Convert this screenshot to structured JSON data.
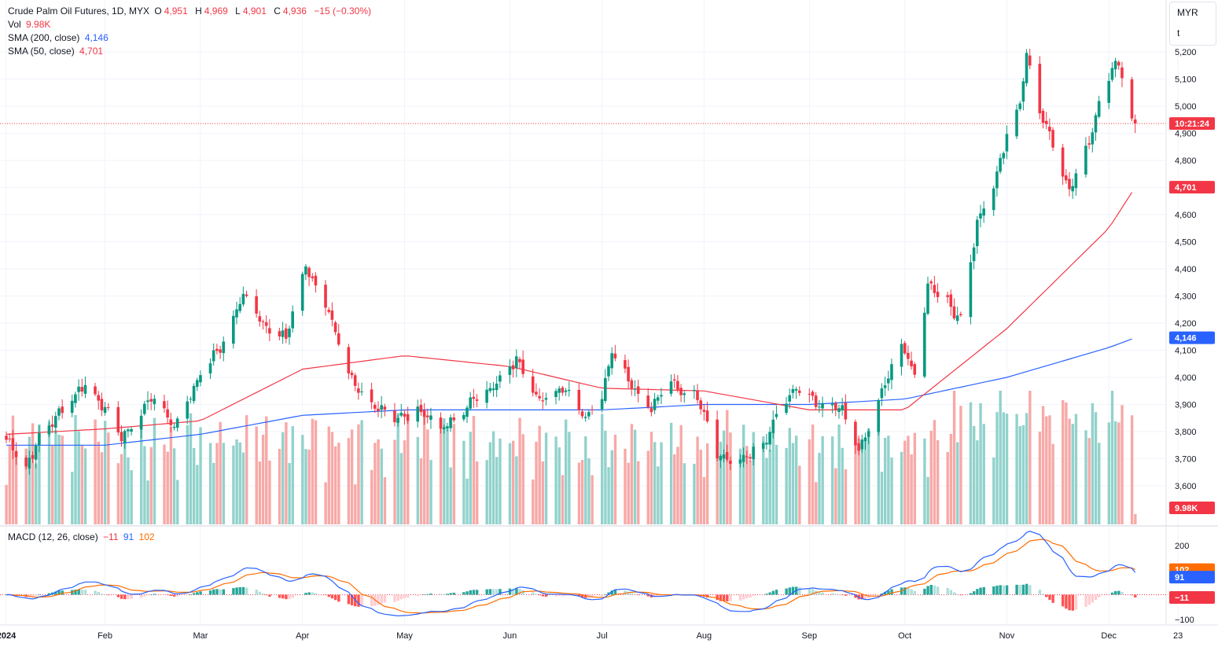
{
  "header": {
    "symbol": "Crude Palm Oil Futures, 1D, MYX",
    "o_label": "O",
    "o_value": "4,951",
    "h_label": "H",
    "h_value": "4,969",
    "l_label": "L",
    "l_value": "4,901",
    "c_label": "C",
    "c_value": "4,936",
    "change": "−15 (−0.30%)"
  },
  "legend": {
    "vol_label": "Vol",
    "vol_value": "9.98K",
    "sma200_label": "SMA (200, close)",
    "sma200_value": "4,146",
    "sma50_label": "SMA (50, close)",
    "sma50_value": "4,701",
    "macd_label": "MACD (12, 26, close)",
    "macd_hist": "−11",
    "macd_line": "91",
    "macd_signal": "102"
  },
  "currency": {
    "code": "MYR",
    "unit": "t"
  },
  "price_badges": {
    "countdown": "10:21:24",
    "sma50": "4,701",
    "sma200": "4,146",
    "volume": "9.98K",
    "macd_signal": "102",
    "macd_line": "91",
    "macd_hist": "−11"
  },
  "colors": {
    "up": "#089981",
    "down": "#f23645",
    "vol_up": "#92d2cc",
    "vol_down": "#f7a9a7",
    "sma50": "#f23645",
    "sma200": "#2962ff",
    "macd": "#2962ff",
    "signal": "#ff6d00",
    "hist_up_strong": "#26a69a",
    "hist_up_weak": "#b2dfdb",
    "hist_down_strong": "#ff5252",
    "hist_down_weak": "#ffcdd2"
  },
  "chart_data": {
    "type": "candlestick",
    "title": "Crude Palm Oil Futures, 1D, MYX",
    "y_ticks": [
      3600,
      3700,
      3800,
      3900,
      4000,
      4100,
      4200,
      4300,
      4400,
      4500,
      4600,
      4700,
      4800,
      4900,
      5000,
      5100,
      5200
    ],
    "y_tick_labels": [
      "3,600",
      "3,700",
      "3,800",
      "3,900",
      "4,000",
      "4,100",
      "4,200",
      "4,300",
      "4,400",
      "4,500",
      "4,600",
      "4,700",
      "4,800",
      "4,900",
      "5,000",
      "5,100",
      "5,200"
    ],
    "x_ticks": [
      {
        "label": "2024",
        "date": "2024-01-02"
      },
      {
        "label": "Feb",
        "date": "2024-02-01"
      },
      {
        "label": "Mar",
        "date": "2024-03-01"
      },
      {
        "label": "Apr",
        "date": "2024-04-01"
      },
      {
        "label": "May",
        "date": "2024-05-02"
      },
      {
        "label": "Jun",
        "date": "2024-06-03"
      },
      {
        "label": "Jul",
        "date": "2024-07-01"
      },
      {
        "label": "Aug",
        "date": "2024-08-01"
      },
      {
        "label": "Sep",
        "date": "2024-09-02"
      },
      {
        "label": "Oct",
        "date": "2024-10-01"
      },
      {
        "label": "Nov",
        "date": "2024-11-01"
      },
      {
        "label": "Dec",
        "date": "2024-12-02"
      },
      {
        "label": "23",
        "date": "2024-12-23"
      }
    ],
    "close_key_points": [
      {
        "date": "2024-01-02",
        "close": 3770
      },
      {
        "date": "2024-01-08",
        "close": 3660
      },
      {
        "date": "2024-01-12",
        "close": 3790
      },
      {
        "date": "2024-01-19",
        "close": 3870
      },
      {
        "date": "2024-01-26",
        "close": 3990
      },
      {
        "date": "2024-02-06",
        "close": 3780
      },
      {
        "date": "2024-02-15",
        "close": 3920
      },
      {
        "date": "2024-02-22",
        "close": 3830
      },
      {
        "date": "2024-03-01",
        "close": 4000
      },
      {
        "date": "2024-03-08",
        "close": 4140
      },
      {
        "date": "2024-03-14",
        "close": 4300
      },
      {
        "date": "2024-03-22",
        "close": 4180
      },
      {
        "date": "2024-03-27",
        "close": 4140
      },
      {
        "date": "2024-04-02",
        "close": 4410
      },
      {
        "date": "2024-04-08",
        "close": 4280
      },
      {
        "date": "2024-04-15",
        "close": 4000
      },
      {
        "date": "2024-04-22",
        "close": 3900
      },
      {
        "date": "2024-04-29",
        "close": 3850
      },
      {
        "date": "2024-05-06",
        "close": 3880
      },
      {
        "date": "2024-05-13",
        "close": 3810
      },
      {
        "date": "2024-05-20",
        "close": 3880
      },
      {
        "date": "2024-05-27",
        "close": 3950
      },
      {
        "date": "2024-06-05",
        "close": 4060
      },
      {
        "date": "2024-06-12",
        "close": 3920
      },
      {
        "date": "2024-06-19",
        "close": 3960
      },
      {
        "date": "2024-06-26",
        "close": 3860
      },
      {
        "date": "2024-07-01",
        "close": 3940
      },
      {
        "date": "2024-07-04",
        "close": 4090
      },
      {
        "date": "2024-07-10",
        "close": 3980
      },
      {
        "date": "2024-07-16",
        "close": 3880
      },
      {
        "date": "2024-07-22",
        "close": 3980
      },
      {
        "date": "2024-07-30",
        "close": 3930
      },
      {
        "date": "2024-08-05",
        "close": 3720
      },
      {
        "date": "2024-08-12",
        "close": 3690
      },
      {
        "date": "2024-08-19",
        "close": 3740
      },
      {
        "date": "2024-08-23",
        "close": 3870
      },
      {
        "date": "2024-08-29",
        "close": 3950
      },
      {
        "date": "2024-09-05",
        "close": 3900
      },
      {
        "date": "2024-09-11",
        "close": 3890
      },
      {
        "date": "2024-09-17",
        "close": 3730
      },
      {
        "date": "2024-09-23",
        "close": 3910
      },
      {
        "date": "2024-09-30",
        "close": 4120
      },
      {
        "date": "2024-10-04",
        "close": 4020
      },
      {
        "date": "2024-10-08",
        "close": 4340
      },
      {
        "date": "2024-10-14",
        "close": 4270
      },
      {
        "date": "2024-10-18",
        "close": 4230
      },
      {
        "date": "2024-10-23",
        "close": 4560
      },
      {
        "date": "2024-10-28",
        "close": 4700
      },
      {
        "date": "2024-11-01",
        "close": 4910
      },
      {
        "date": "2024-11-05",
        "close": 5000
      },
      {
        "date": "2024-11-07",
        "close": 5190
      },
      {
        "date": "2024-11-11",
        "close": 4980
      },
      {
        "date": "2024-11-14",
        "close": 4910
      },
      {
        "date": "2024-11-20",
        "close": 4680
      },
      {
        "date": "2024-11-25",
        "close": 4830
      },
      {
        "date": "2024-11-29",
        "close": 5020
      },
      {
        "date": "2024-12-03",
        "close": 5150
      },
      {
        "date": "2024-12-06",
        "close": 5120
      },
      {
        "date": "2024-12-09",
        "close": 4950
      },
      {
        "date": "2024-12-10",
        "close": 4936
      }
    ],
    "sma50_key_points": [
      {
        "date": "2024-01-02",
        "value": 3790
      },
      {
        "date": "2024-02-01",
        "value": 3810
      },
      {
        "date": "2024-03-01",
        "value": 3840
      },
      {
        "date": "2024-04-01",
        "value": 4030
      },
      {
        "date": "2024-05-02",
        "value": 4080
      },
      {
        "date": "2024-06-03",
        "value": 4040
      },
      {
        "date": "2024-07-01",
        "value": 3960
      },
      {
        "date": "2024-08-01",
        "value": 3950
      },
      {
        "date": "2024-09-02",
        "value": 3880
      },
      {
        "date": "2024-10-01",
        "value": 3880
      },
      {
        "date": "2024-11-01",
        "value": 4180
      },
      {
        "date": "2024-12-02",
        "value": 4550
      },
      {
        "date": "2024-12-10",
        "value": 4701
      }
    ],
    "sma200_key_points": [
      {
        "date": "2024-01-02",
        "value": 3750
      },
      {
        "date": "2024-02-01",
        "value": 3750
      },
      {
        "date": "2024-03-01",
        "value": 3790
      },
      {
        "date": "2024-04-01",
        "value": 3860
      },
      {
        "date": "2024-05-02",
        "value": 3880
      },
      {
        "date": "2024-06-03",
        "value": 3880
      },
      {
        "date": "2024-07-01",
        "value": 3880
      },
      {
        "date": "2024-08-01",
        "value": 3900
      },
      {
        "date": "2024-09-02",
        "value": 3900
      },
      {
        "date": "2024-10-01",
        "value": 3920
      },
      {
        "date": "2024-11-01",
        "value": 4000
      },
      {
        "date": "2024-12-02",
        "value": 4110
      },
      {
        "date": "2024-12-10",
        "value": 4146
      }
    ],
    "volume": {
      "y_max_thousands": 30,
      "last": "9.98K"
    },
    "macd": {
      "params": "12, 26, close",
      "y_ticks": [
        200,
        100,
        0,
        -100
      ],
      "y_tick_labels": [
        "200",
        "",
        "",
        "−100"
      ],
      "last_macd": 91,
      "last_signal": 102,
      "last_hist": -11
    }
  }
}
